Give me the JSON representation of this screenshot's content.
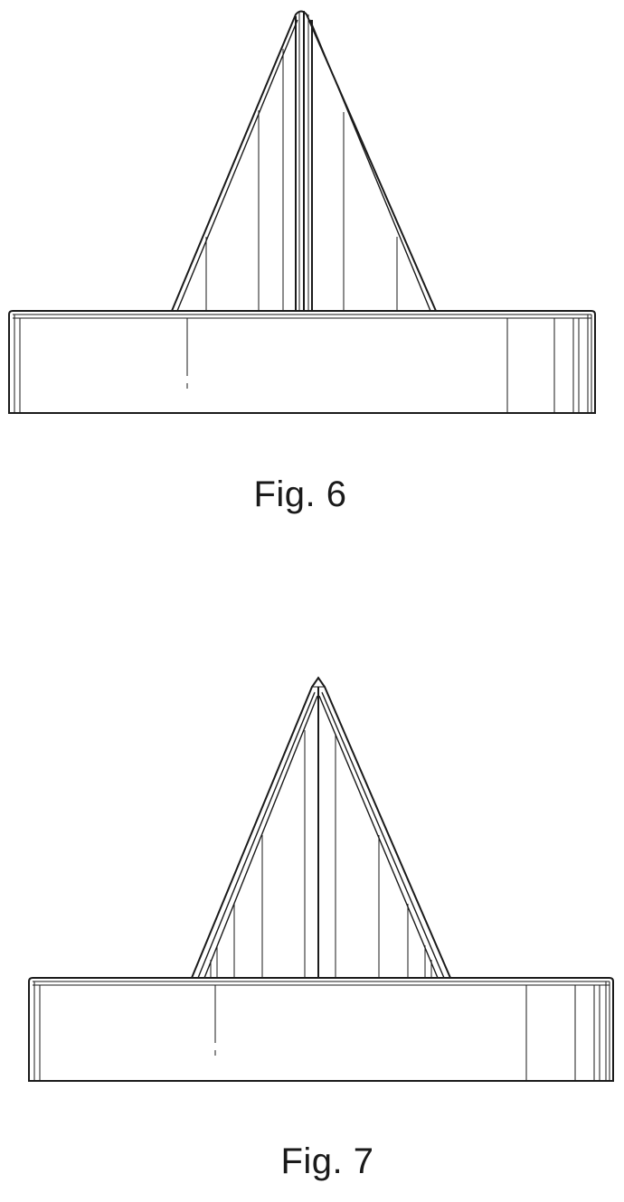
{
  "figures": [
    {
      "label": "Fig. 6"
    },
    {
      "label": "Fig. 7"
    }
  ]
}
